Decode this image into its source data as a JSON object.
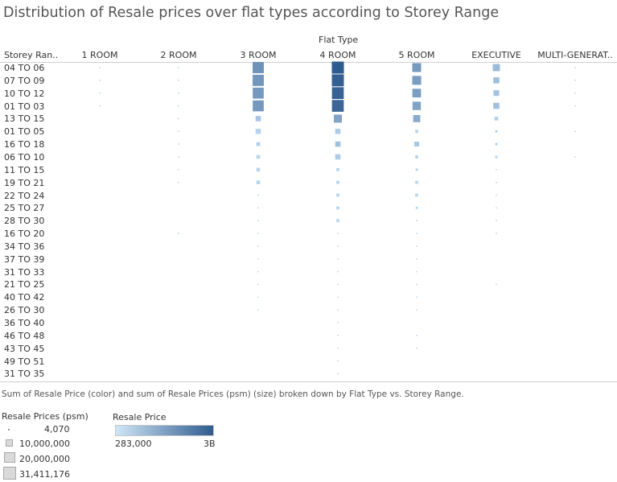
{
  "title": "Distribution of Resale prices over flat types according to Storey Range",
  "caption": "Sum of Resale Price (color) and sum of Resale Prices (psm) (size) broken down by Flat Type vs. Storey Range.",
  "legend": {
    "size_title": "Resale Prices (psm)",
    "size_items": [
      "4,070",
      "10,000,000",
      "20,000,000",
      "31,411,176"
    ],
    "color_title": "Resale Price",
    "color_min": "283,000",
    "color_max": "3B"
  },
  "colors": {
    "light": "#c6e0f5",
    "dark": "#2f5c8f",
    "tiny": "#a8cce8"
  },
  "chart_data": {
    "type": "heatmap",
    "title": "Distribution of Resale prices over flat types according to Storey Range",
    "column_header": "Flat Type",
    "row_header": "Storey Ran..",
    "columns": [
      "1 ROOM",
      "2 ROOM",
      "3 ROOM",
      "4 ROOM",
      "5 ROOM",
      "EXECUTIVE",
      "MULTI-GENERAT.."
    ],
    "rows": [
      "04 TO 06",
      "07 TO 09",
      "10 TO 12",
      "01 TO 03",
      "13 TO 15",
      "01 TO 05",
      "16 TO 18",
      "06 TO 10",
      "11 TO 15",
      "19 TO 21",
      "22 TO 24",
      "25 TO 27",
      "28 TO 30",
      "16 TO 20",
      "34 TO 36",
      "37 TO 39",
      "31 TO 33",
      "21 TO 25",
      "40 TO 42",
      "26 TO 30",
      "36 TO 40",
      "46 TO 48",
      "43 TO 45",
      "49 TO 51",
      "31 TO 35"
    ],
    "size_measure": "Resale Prices (psm)",
    "color_measure": "Resale Price",
    "size_values": [
      [
        50000,
        300000,
        27000000,
        31411176,
        17000000,
        11000000,
        50000
      ],
      [
        50000,
        300000,
        27000000,
        31000000,
        17000000,
        8000000,
        50000
      ],
      [
        50000,
        300000,
        26000000,
        30000000,
        16000000,
        7000000,
        50000
      ],
      [
        50000,
        300000,
        26000000,
        30000000,
        15000000,
        8000000,
        20000
      ],
      [
        0,
        150000,
        6000000,
        14000000,
        11000000,
        3000000,
        0
      ],
      [
        0,
        100000,
        6000000,
        6000000,
        2000000,
        1000000,
        20000
      ],
      [
        0,
        100000,
        3000000,
        6000000,
        5000000,
        1000000,
        0
      ],
      [
        0,
        100000,
        3000000,
        6000000,
        2000000,
        1500000,
        20000
      ],
      [
        0,
        100000,
        3000000,
        2000000,
        1000000,
        200000,
        0
      ],
      [
        0,
        100000,
        3000000,
        2000000,
        2000000,
        200000,
        0
      ],
      [
        0,
        0,
        300000,
        2000000,
        2000000,
        200000,
        0
      ],
      [
        0,
        0,
        200000,
        2000000,
        800000,
        100000,
        0
      ],
      [
        0,
        0,
        200000,
        2000000,
        300000,
        100000,
        0
      ],
      [
        0,
        10000,
        200000,
        200000,
        300000,
        100000,
        0
      ],
      [
        0,
        0,
        100000,
        200000,
        200000,
        0,
        0
      ],
      [
        0,
        0,
        100000,
        200000,
        200000,
        0,
        0
      ],
      [
        0,
        0,
        100000,
        200000,
        200000,
        0,
        0
      ],
      [
        0,
        0,
        100000,
        100000,
        100000,
        10000,
        0
      ],
      [
        0,
        0,
        100000,
        100000,
        100000,
        0,
        0
      ],
      [
        0,
        0,
        100000,
        100000,
        100000,
        0,
        0
      ],
      [
        0,
        0,
        0,
        100000,
        0,
        0,
        0
      ],
      [
        0,
        0,
        0,
        100000,
        30000,
        0,
        0
      ],
      [
        0,
        0,
        0,
        100000,
        30000,
        0,
        0
      ],
      [
        0,
        0,
        0,
        100000,
        0,
        0,
        0
      ],
      [
        0,
        0,
        0,
        30000,
        0,
        0,
        0
      ]
    ],
    "color_values": [
      [
        283000,
        10000000,
        1400000000,
        3000000000,
        1200000000,
        500000000,
        2000000
      ],
      [
        283000,
        10000000,
        1300000000,
        2900000000,
        1150000000,
        400000000,
        2000000
      ],
      [
        283000,
        10000000,
        1250000000,
        2800000000,
        1100000000,
        350000000,
        2000000
      ],
      [
        283000,
        10000000,
        1250000000,
        2700000000,
        1000000000,
        400000000,
        1000000
      ],
      [
        0,
        5000000,
        300000000,
        1000000000,
        800000000,
        150000000,
        0
      ],
      [
        0,
        5000000,
        100000000,
        200000000,
        100000000,
        50000000,
        1000000
      ],
      [
        0,
        5000000,
        150000000,
        400000000,
        300000000,
        50000000,
        0
      ],
      [
        0,
        5000000,
        100000000,
        200000000,
        100000000,
        50000000,
        1000000
      ],
      [
        0,
        5000000,
        80000000,
        100000000,
        50000000,
        10000000,
        0
      ],
      [
        0,
        5000000,
        80000000,
        100000000,
        80000000,
        10000000,
        0
      ],
      [
        0,
        0,
        20000000,
        100000000,
        80000000,
        10000000,
        0
      ],
      [
        0,
        0,
        10000000,
        80000000,
        40000000,
        5000000,
        0
      ],
      [
        0,
        0,
        10000000,
        80000000,
        20000000,
        5000000,
        0
      ],
      [
        0,
        500000,
        10000000,
        10000000,
        10000000,
        5000000,
        0
      ],
      [
        0,
        0,
        5000000,
        10000000,
        10000000,
        0,
        0
      ],
      [
        0,
        0,
        5000000,
        10000000,
        10000000,
        0,
        0
      ],
      [
        0,
        0,
        5000000,
        10000000,
        10000000,
        0,
        0
      ],
      [
        0,
        0,
        5000000,
        5000000,
        5000000,
        500000,
        0
      ],
      [
        0,
        0,
        5000000,
        5000000,
        5000000,
        0,
        0
      ],
      [
        0,
        0,
        5000000,
        5000000,
        5000000,
        0,
        0
      ],
      [
        0,
        0,
        0,
        5000000,
        0,
        0,
        0
      ],
      [
        0,
        0,
        0,
        5000000,
        2000000,
        0,
        0
      ],
      [
        0,
        0,
        0,
        5000000,
        2000000,
        0,
        0
      ],
      [
        0,
        0,
        0,
        5000000,
        0,
        0,
        0
      ],
      [
        0,
        0,
        0,
        2000000,
        0,
        0,
        0
      ]
    ]
  }
}
